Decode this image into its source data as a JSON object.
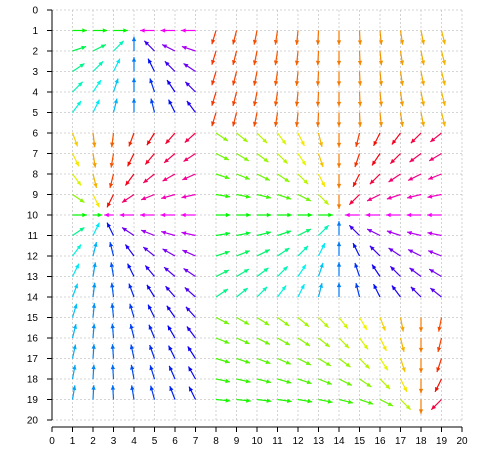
{
  "chart_data": {
    "type": "quiver",
    "title": "",
    "xlabel": "",
    "ylabel": "",
    "xlim": [
      0,
      20
    ],
    "ylim": [
      0,
      20
    ],
    "y_axis_inverted": true,
    "grid": true,
    "x_ticks": [
      "0",
      "1",
      "2",
      "3",
      "4",
      "5",
      "6",
      "7",
      "8",
      "9",
      "10",
      "11",
      "12",
      "13",
      "14",
      "15",
      "16",
      "17",
      "18",
      "19",
      "20"
    ],
    "y_ticks": [
      "0",
      "1",
      "2",
      "3",
      "4",
      "5",
      "6",
      "7",
      "8",
      "9",
      "10",
      "11",
      "12",
      "13",
      "14",
      "15",
      "16",
      "17",
      "18",
      "19",
      "20"
    ],
    "color_encoding": "hue by arrow direction",
    "sinks": [
      {
        "x": 4,
        "y": 1
      },
      {
        "x": 2.5,
        "y": 10
      },
      {
        "x": 14,
        "y": 10
      },
      {
        "x": 18,
        "y": 20
      }
    ],
    "region_boundaries": {
      "vertical": [
        8
      ],
      "horizontal": [
        5.5,
        14.5
      ]
    },
    "sample_spacing": 1
  }
}
